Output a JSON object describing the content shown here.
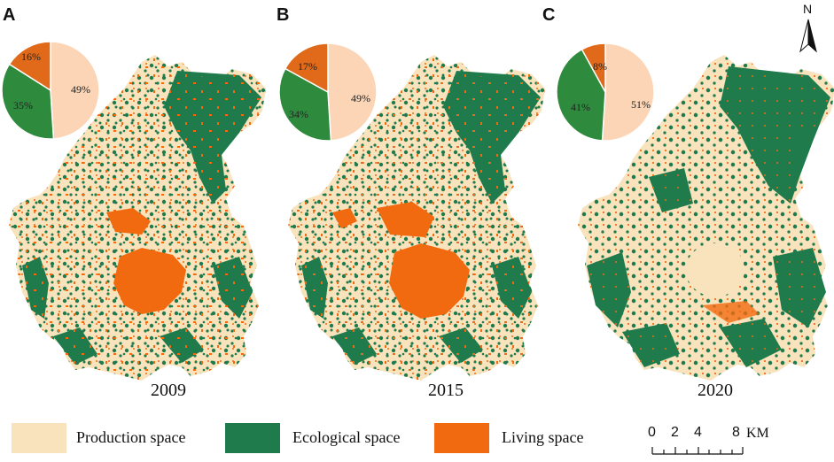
{
  "panels": [
    {
      "letter": "A",
      "year": "2009",
      "pie": {
        "production": "49%",
        "ecological": "35%",
        "living": "16%"
      }
    },
    {
      "letter": "B",
      "year": "2015",
      "pie": {
        "production": "49%",
        "ecological": "34%",
        "living": "17%"
      }
    },
    {
      "letter": "C",
      "year": "2020",
      "pie": {
        "production": "51%",
        "ecological": "41%",
        "living": "8%"
      }
    }
  ],
  "pie_values": [
    {
      "production": 49,
      "ecological": 35,
      "living": 16
    },
    {
      "production": 49,
      "ecological": 34,
      "living": 17
    },
    {
      "production": 51,
      "ecological": 41,
      "living": 8
    }
  ],
  "legend": {
    "production": "Production space",
    "ecological": "Ecological space",
    "living": "Living space"
  },
  "scale": {
    "n0": "0",
    "n2": "2",
    "n4": "4",
    "n8": "8",
    "unit": "KM"
  },
  "north": "N",
  "colors": {
    "production": "#f9e3bd",
    "ecological": "#1f7a4c",
    "living": "#f26a10",
    "pie_production": "#fbd5b5",
    "pie_ecological": "#2e8b3e",
    "pie_living": "#e06a1a"
  }
}
